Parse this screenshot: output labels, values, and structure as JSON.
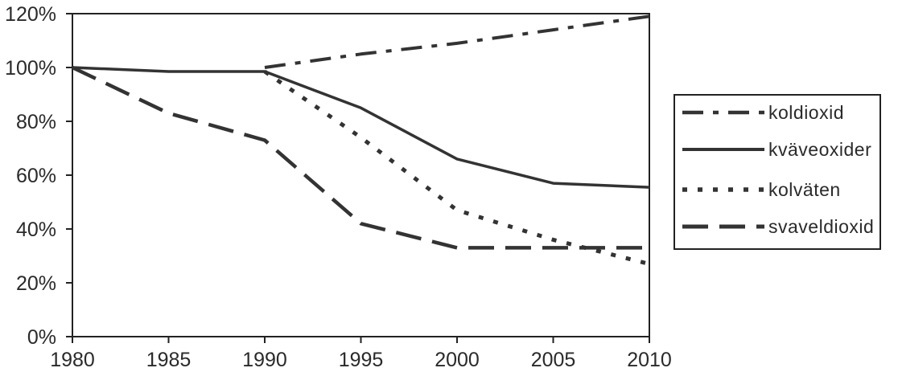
{
  "chart_data": {
    "type": "line",
    "title": "",
    "xlabel": "",
    "ylabel": "",
    "x": [
      1980,
      1985,
      1990,
      1995,
      2000,
      2005,
      2010
    ],
    "x_tick_labels": [
      "1980",
      "1985",
      "1990",
      "1995",
      "2000",
      "2005",
      "2010"
    ],
    "ylim": [
      0,
      120
    ],
    "y_ticks": [
      0,
      20,
      40,
      60,
      80,
      100,
      120
    ],
    "y_tick_labels": [
      "0%",
      "20%",
      "40%",
      "60%",
      "80%",
      "100%",
      "120%"
    ],
    "grid": false,
    "legend_position": "right",
    "series": [
      {
        "name": "koldioxid",
        "dash": "dash-dot",
        "x": [
          1990,
          1995,
          2000,
          2005,
          2010
        ],
        "values": [
          100,
          105,
          109,
          114,
          119
        ]
      },
      {
        "name": "kväveoxider",
        "dash": "solid",
        "x": [
          1980,
          1985,
          1990,
          1995,
          2000,
          2005,
          2010
        ],
        "values": [
          100,
          98.5,
          98.5,
          85,
          66,
          57,
          55.5
        ]
      },
      {
        "name": "kolväten",
        "dash": "dotted",
        "x": [
          1990,
          1995,
          2000,
          2005,
          2010
        ],
        "values": [
          98.5,
          74,
          47,
          36,
          27
        ]
      },
      {
        "name": "svaveldioxid",
        "dash": "long-dash",
        "x": [
          1980,
          1985,
          1990,
          1995,
          2000,
          2005,
          2010
        ],
        "values": [
          100,
          83,
          73,
          42,
          33,
          33,
          33
        ]
      }
    ],
    "colors": {
      "line": "#333333",
      "axis": "#222222",
      "frame": "#222222",
      "text": "#2a2a2a"
    }
  }
}
